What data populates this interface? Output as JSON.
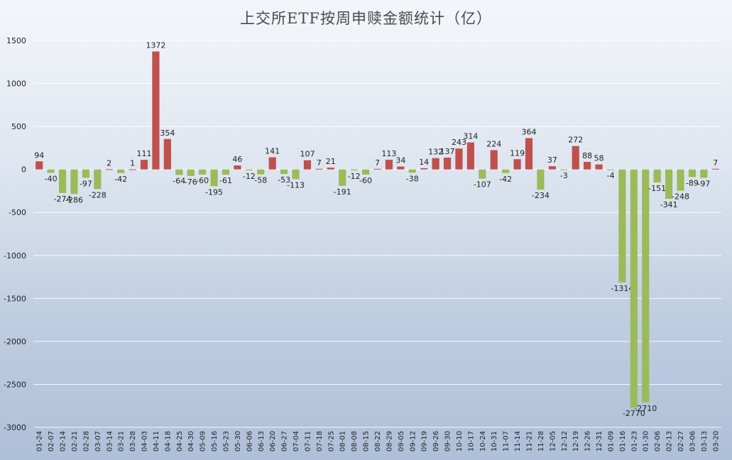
{
  "chart_data": {
    "type": "bar",
    "title": "上交所ETF按周申赎金额统计（亿）",
    "categories": [
      "01-24",
      "02-07",
      "02-14",
      "02-21",
      "02-28",
      "03-07",
      "03-14",
      "03-21",
      "03-28",
      "04-03",
      "04-11",
      "04-18",
      "04-25",
      "04-30",
      "05-09",
      "05-16",
      "05-23",
      "05-30",
      "06-06",
      "06-13",
      "06-20",
      "06-27",
      "07-04",
      "07-11",
      "07-18",
      "07-25",
      "08-01",
      "08-08",
      "08-15",
      "08-22",
      "08-29",
      "09-05",
      "09-12",
      "09-19",
      "09-26",
      "09-30",
      "10-10",
      "10-17",
      "10-24",
      "10-31",
      "11-07",
      "11-14",
      "11-21",
      "11-28",
      "12-05",
      "12-12",
      "12-19",
      "12-26",
      "12-31",
      "01-09",
      "01-16",
      "01-23",
      "01-30",
      "02-06",
      "02-13",
      "02-27",
      "03-06",
      "03-13",
      "03-20"
    ],
    "values": [
      94,
      -40,
      -274,
      -286,
      -97,
      -228,
      2,
      -42,
      1,
      111,
      1372,
      354,
      -64,
      -76,
      -60,
      -195,
      -61,
      46,
      -12,
      -58,
      141,
      -53,
      -113,
      107,
      7,
      21,
      -191,
      -12,
      -60,
      7,
      113,
      34,
      -38,
      14,
      132,
      137,
      243,
      314,
      -107,
      224,
      -42,
      119,
      364,
      -234,
      37,
      -3,
      272,
      88,
      58,
      -4,
      -1314,
      -2770,
      -2710,
      -151,
      -341,
      -248,
      -89,
      -97,
      7
    ],
    "yticks": [
      "1500",
      "1000",
      "500",
      "0",
      "-500",
      "-1000",
      "-1500",
      "-2000",
      "-2500",
      "-3000"
    ],
    "ylim": [
      -3000,
      1500
    ],
    "grid": true,
    "colors": {
      "positive": "#c0504d",
      "negative": "#9bbb59",
      "grid": "#ffffff"
    }
  }
}
